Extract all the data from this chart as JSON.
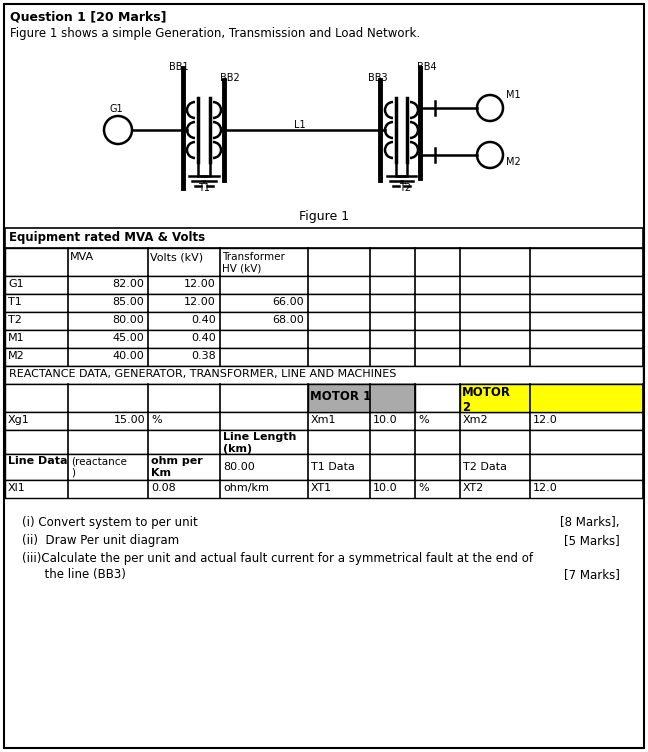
{
  "title_text": "Question 1 [20 Marks]",
  "subtitle_text": "Figure 1 shows a simple Generation, Transmission and Load Network.",
  "figure_caption": "Figure 1",
  "bg_color": "#ffffff",
  "table1_header": "Equipment rated MVA & Volts",
  "table1_rows": [
    [
      "G1",
      "82.00",
      "12.00",
      ""
    ],
    [
      "T1",
      "85.00",
      "12.00",
      "66.00"
    ],
    [
      "T2",
      "80.00",
      "0.40",
      "68.00"
    ],
    [
      "M1",
      "45.00",
      "0.40",
      ""
    ],
    [
      "M2",
      "40.00",
      "0.38",
      ""
    ]
  ],
  "table2_label": "REACTANCE DATA, GENERATOR, TRANSFORMER, LINE AND MACHINES",
  "motor1_header": "MOTOR 1",
  "motor2_header": "MOTOR\n2",
  "motor1_bg": "#aaaaaa",
  "motor2_bg": "#ffff00",
  "q1": "(i) Convert system to per unit",
  "q1m": "[8 Marks],",
  "q2": "(ii)  Draw Per unit diagram",
  "q2m": "[5 Marks]",
  "q3a": "(iii)Calculate the per unit and actual fault current for a symmetrical fault at the end of",
  "q3b": "      the line (BB3)",
  "q3m": "[7 Marks]"
}
